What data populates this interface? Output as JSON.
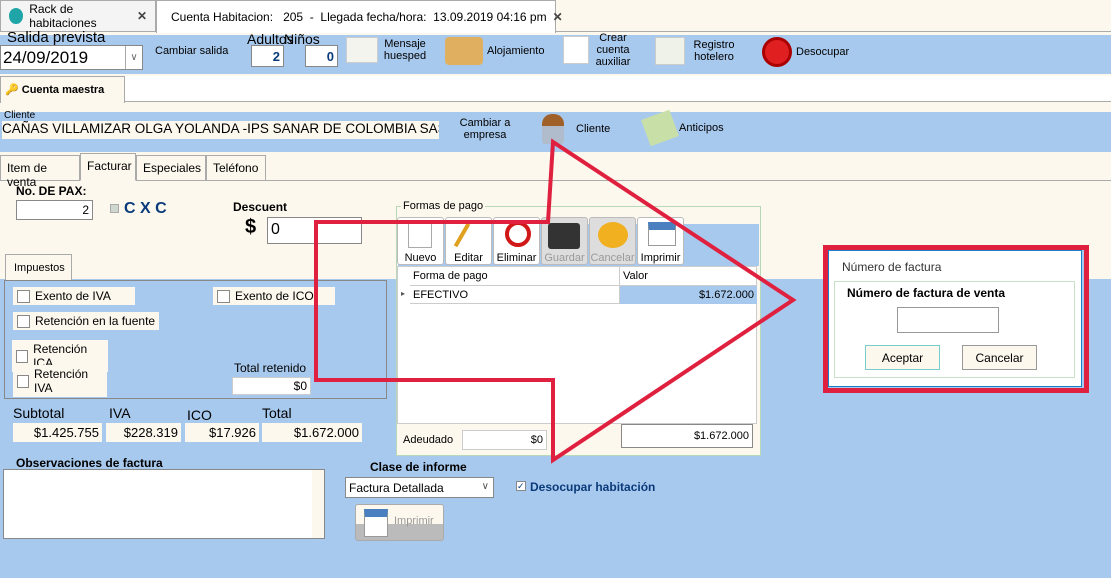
{
  "tabs": [
    {
      "label": "Rack de habitaciones"
    },
    {
      "label": "Cuenta Habitacion:   205  -  Llegada fecha/hora:  13.09.2019 04:16 pm"
    }
  ],
  "toolbar": {
    "salida_label": "Salida prevista",
    "salida_value": "24/09/2019",
    "cambiar_salida": "Cambiar salida",
    "adultos_label": "Adultos",
    "adultos": "2",
    "ninos_label": "Niños",
    "ninos": "0",
    "mensaje": "Mensaje huesped",
    "alojamiento": "Alojamiento",
    "crear_cuenta": "Crear cuenta auxiliar",
    "registro": "Registro hotelero",
    "desocupar": "Desocupar"
  },
  "subtab": "Cuenta maestra",
  "cliente": {
    "label": "Cliente",
    "value": "CAÑAS VILLAMIZAR OLGA YOLANDA -IPS SANAR DE COLOMBIA SAS",
    "cambiar": "Cambiar a empresa",
    "cliente_btn": "Cliente",
    "anticipos": "Anticipos"
  },
  "section_tabs": [
    "Item de venta",
    "Facturar",
    "Especiales",
    "Teléfono"
  ],
  "facturar": {
    "pax_label": "No. DE PAX:",
    "pax": "2",
    "cxc": "C X C",
    "descuento_label": "Descuent",
    "currency": "$",
    "descuento": "0",
    "impuestos_tab": "Impuestos",
    "exento_iva": "Exento de IVA",
    "exento_ico": "Exento de ICO",
    "ret_fuente": "Retención en la fuente",
    "ret_ica": "Retención ICA",
    "ret_iva": "Retención IVA",
    "total_retenido_label": "Total retenido",
    "total_retenido": "$0",
    "totals": [
      {
        "label": "Subtotal",
        "value": "$1.425.755"
      },
      {
        "label": "IVA",
        "value": "$228.319"
      },
      {
        "label": "ICO",
        "value": "$17.926"
      },
      {
        "label": "Total",
        "value": "$1.672.000"
      }
    ],
    "observaciones_label": "Observaciones de factura",
    "clase_label": "Clase de informe",
    "clase_value": "Factura Detallada",
    "desocupar_hab": "Desocupar habitación",
    "imprimir": "Imprimir"
  },
  "formas_pago": {
    "title": "Formas de pago",
    "buttons": [
      "Nuevo",
      "Editar",
      "Eliminar",
      "Guardar",
      "Cancelar",
      "Imprimir"
    ],
    "columns": [
      "Forma de pago",
      "Valor"
    ],
    "rows": [
      {
        "forma": "EFECTIVO",
        "valor": "$1.672.000"
      }
    ],
    "adeudado_label": "Adeudado",
    "adeudado": "$0",
    "total": "$1.672.000"
  },
  "dialog": {
    "title": "Número de factura",
    "label": "Número de factura de venta",
    "input": "",
    "aceptar": "Aceptar",
    "cancelar": "Cancelar"
  },
  "colors": {
    "panel_blue": "#a8c9ee",
    "cream": "#fdf8ee",
    "annotation_red": "#e0203f"
  }
}
